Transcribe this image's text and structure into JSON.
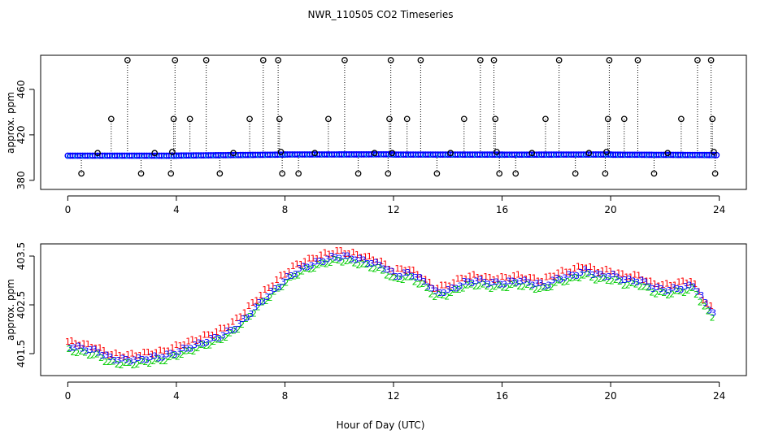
{
  "title": "NWR_110505  CO2 Timeseries",
  "xlabel": "Hour of Day (UTC)",
  "colors": {
    "s1": "#ff0000",
    "s2": "#00cc00",
    "s3": "#0000ff",
    "cyan": "#00cccc",
    "blue": "#0000ff",
    "outline": "#000000"
  },
  "chart_data": [
    {
      "type": "scatter",
      "name": "upper-panel",
      "ylabel": "approx. ppm",
      "xlim": [
        -1,
        25
      ],
      "ylim": [
        372,
        490
      ],
      "xticks": [
        "0",
        "4",
        "8",
        "12",
        "16",
        "20",
        "24"
      ],
      "xtick_values": [
        0,
        4,
        8,
        12,
        16,
        20,
        24
      ],
      "yticks": [
        "380",
        "420",
        "460"
      ],
      "ytick_values": [
        380,
        420,
        460
      ],
      "baseline_ppm": 402,
      "segments": [
        {
          "x0": 0.0,
          "x1": 4.0,
          "y0": 401.5,
          "y1": 401.4
        },
        {
          "x0": 4.0,
          "x1": 8.0,
          "y0": 401.6,
          "y1": 403.0
        },
        {
          "x0": 8.0,
          "x1": 12.0,
          "y0": 403.2,
          "y1": 403.4
        },
        {
          "x0": 12.0,
          "x1": 16.0,
          "y0": 403.1,
          "y1": 403.0
        },
        {
          "x0": 16.0,
          "x1": 20.0,
          "y0": 402.9,
          "y1": 403.2
        },
        {
          "x0": 20.0,
          "x1": 23.9,
          "y0": 402.9,
          "y1": 402.4
        }
      ],
      "spikes": [
        {
          "x": 0.5,
          "y": 386
        },
        {
          "x": 1.1,
          "y": 404
        },
        {
          "x": 1.6,
          "y": 434
        },
        {
          "x": 2.2,
          "y": 491
        },
        {
          "x": 2.7,
          "y": 386
        },
        {
          "x": 3.2,
          "y": 404
        },
        {
          "x": 3.8,
          "y": 386
        },
        {
          "x": 3.85,
          "y": 405
        },
        {
          "x": 3.9,
          "y": 434
        },
        {
          "x": 3.95,
          "y": 491
        },
        {
          "x": 4.5,
          "y": 434
        },
        {
          "x": 5.1,
          "y": 491
        },
        {
          "x": 5.6,
          "y": 386
        },
        {
          "x": 6.1,
          "y": 404
        },
        {
          "x": 6.7,
          "y": 434
        },
        {
          "x": 7.2,
          "y": 491
        },
        {
          "x": 7.75,
          "y": 491
        },
        {
          "x": 7.8,
          "y": 434
        },
        {
          "x": 7.85,
          "y": 405
        },
        {
          "x": 7.9,
          "y": 386
        },
        {
          "x": 8.5,
          "y": 386
        },
        {
          "x": 9.1,
          "y": 404
        },
        {
          "x": 9.6,
          "y": 434
        },
        {
          "x": 10.2,
          "y": 491
        },
        {
          "x": 10.7,
          "y": 386
        },
        {
          "x": 11.3,
          "y": 404
        },
        {
          "x": 11.8,
          "y": 386
        },
        {
          "x": 11.85,
          "y": 434
        },
        {
          "x": 11.9,
          "y": 491
        },
        {
          "x": 11.95,
          "y": 404
        },
        {
          "x": 12.5,
          "y": 434
        },
        {
          "x": 13.0,
          "y": 491
        },
        {
          "x": 13.6,
          "y": 386
        },
        {
          "x": 14.1,
          "y": 404
        },
        {
          "x": 14.6,
          "y": 434
        },
        {
          "x": 15.2,
          "y": 491
        },
        {
          "x": 15.7,
          "y": 491
        },
        {
          "x": 15.75,
          "y": 434
        },
        {
          "x": 15.8,
          "y": 405
        },
        {
          "x": 15.9,
          "y": 386
        },
        {
          "x": 16.5,
          "y": 386
        },
        {
          "x": 17.1,
          "y": 404
        },
        {
          "x": 17.6,
          "y": 434
        },
        {
          "x": 18.1,
          "y": 491
        },
        {
          "x": 18.7,
          "y": 386
        },
        {
          "x": 19.2,
          "y": 404
        },
        {
          "x": 19.8,
          "y": 386
        },
        {
          "x": 19.85,
          "y": 405
        },
        {
          "x": 19.9,
          "y": 434
        },
        {
          "x": 19.95,
          "y": 491
        },
        {
          "x": 20.5,
          "y": 434
        },
        {
          "x": 21.0,
          "y": 491
        },
        {
          "x": 21.6,
          "y": 386
        },
        {
          "x": 22.1,
          "y": 404
        },
        {
          "x": 22.6,
          "y": 434
        },
        {
          "x": 23.2,
          "y": 491
        },
        {
          "x": 23.7,
          "y": 491
        },
        {
          "x": 23.75,
          "y": 434
        },
        {
          "x": 23.8,
          "y": 405
        },
        {
          "x": 23.85,
          "y": 386
        }
      ]
    },
    {
      "type": "scatter",
      "name": "lower-panel",
      "ylabel": "approx. ppm",
      "xlim": [
        -1,
        25
      ],
      "ylim": [
        401.05,
        403.75
      ],
      "xticks": [
        "0",
        "4",
        "8",
        "12",
        "16",
        "20",
        "24"
      ],
      "xtick_values": [
        0,
        4,
        8,
        12,
        16,
        20,
        24
      ],
      "yticks": [
        "401.5",
        "402.5",
        "403.5"
      ],
      "ytick_values": [
        401.5,
        402.5,
        403.5
      ],
      "series": [
        {
          "name": "1",
          "marker": "1",
          "color": "#ff0000",
          "offset": 0.1
        },
        {
          "name": "2",
          "marker": "2",
          "color": "#00cc00",
          "offset": -0.08
        },
        {
          "name": "3",
          "marker": "3",
          "color": "#0000ff",
          "offset": 0.0
        }
      ],
      "profile": [
        [
          0.0,
          401.65
        ],
        [
          0.5,
          401.6
        ],
        [
          1.0,
          401.55
        ],
        [
          1.5,
          401.4
        ],
        [
          2.0,
          401.37
        ],
        [
          2.5,
          401.38
        ],
        [
          3.0,
          401.42
        ],
        [
          3.5,
          401.45
        ],
        [
          4.0,
          401.55
        ],
        [
          4.5,
          401.65
        ],
        [
          5.0,
          401.75
        ],
        [
          5.5,
          401.85
        ],
        [
          6.0,
          402.0
        ],
        [
          6.5,
          402.25
        ],
        [
          7.0,
          402.55
        ],
        [
          7.5,
          402.8
        ],
        [
          8.0,
          403.05
        ],
        [
          8.5,
          403.25
        ],
        [
          9.0,
          403.35
        ],
        [
          9.5,
          403.45
        ],
        [
          10.0,
          403.5
        ],
        [
          10.5,
          403.45
        ],
        [
          11.0,
          403.38
        ],
        [
          11.5,
          403.3
        ],
        [
          12.0,
          403.1
        ],
        [
          12.5,
          403.15
        ],
        [
          13.0,
          403.0
        ],
        [
          13.5,
          402.75
        ],
        [
          14.0,
          402.8
        ],
        [
          14.5,
          402.95
        ],
        [
          15.0,
          403.0
        ],
        [
          15.5,
          402.95
        ],
        [
          16.0,
          402.95
        ],
        [
          16.5,
          403.0
        ],
        [
          17.0,
          402.95
        ],
        [
          17.5,
          402.9
        ],
        [
          18.0,
          403.05
        ],
        [
          18.5,
          403.1
        ],
        [
          19.0,
          403.2
        ],
        [
          19.5,
          403.1
        ],
        [
          20.0,
          403.1
        ],
        [
          20.5,
          403.0
        ],
        [
          21.0,
          403.0
        ],
        [
          21.5,
          402.85
        ],
        [
          22.0,
          402.8
        ],
        [
          22.5,
          402.85
        ],
        [
          23.0,
          402.9
        ],
        [
          23.5,
          402.45
        ],
        [
          23.7,
          402.35
        ]
      ]
    }
  ]
}
